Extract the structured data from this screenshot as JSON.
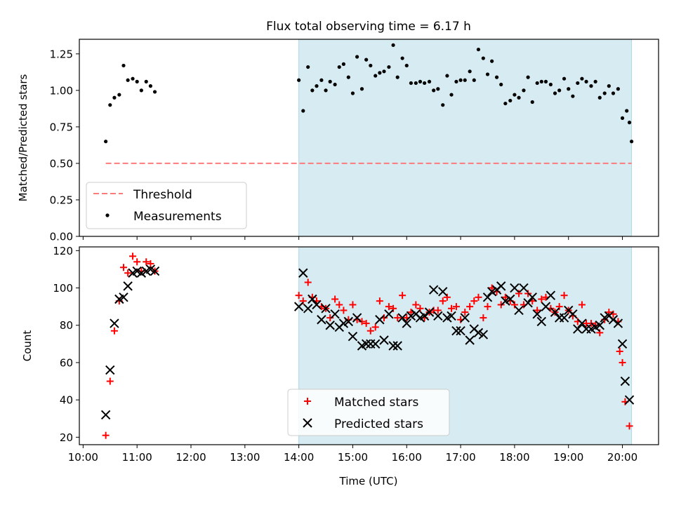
{
  "chart_data": [
    {
      "type": "scatter",
      "title": "Flux total observing time = 6.17 h",
      "xlabel": "",
      "ylabel": "Matched/Predicted stars",
      "xlim": [
        9.93,
        20.67
      ],
      "ylim": [
        0,
        1.35
      ],
      "yticks": [
        0,
        0.25,
        0.5,
        0.75,
        1.0,
        1.25
      ],
      "ytick_labels": [
        "0.00",
        "0.25",
        "0.50",
        "0.75",
        "1.00",
        "1.25"
      ],
      "shaded_interval": [
        14.0,
        20.17
      ],
      "legend_position": "lower-left",
      "threshold": {
        "name": "Threshold",
        "value": 0.5,
        "x_range": [
          10.42,
          20.17
        ],
        "color": "#ff7b7b"
      },
      "series": [
        {
          "name": "Measurements",
          "color": "#000000",
          "points": [
            [
              10.42,
              0.65
            ],
            [
              10.5,
              0.9
            ],
            [
              10.58,
              0.95
            ],
            [
              10.67,
              0.97
            ],
            [
              10.75,
              1.17
            ],
            [
              10.83,
              1.07
            ],
            [
              10.92,
              1.08
            ],
            [
              11.0,
              1.06
            ],
            [
              11.08,
              1.0
            ],
            [
              11.17,
              1.06
            ],
            [
              11.25,
              1.03
            ],
            [
              11.33,
              0.99
            ],
            [
              14.0,
              1.07
            ],
            [
              14.08,
              0.86
            ],
            [
              14.17,
              1.16
            ],
            [
              14.25,
              1.0
            ],
            [
              14.33,
              1.03
            ],
            [
              14.42,
              1.07
            ],
            [
              14.5,
              1.0
            ],
            [
              14.58,
              1.06
            ],
            [
              14.67,
              1.04
            ],
            [
              14.75,
              1.16
            ],
            [
              14.83,
              1.18
            ],
            [
              14.92,
              1.09
            ],
            [
              15.0,
              0.98
            ],
            [
              15.08,
              1.23
            ],
            [
              15.17,
              1.01
            ],
            [
              15.25,
              1.21
            ],
            [
              15.33,
              1.17
            ],
            [
              15.42,
              1.1
            ],
            [
              15.5,
              1.12
            ],
            [
              15.58,
              1.13
            ],
            [
              15.67,
              1.16
            ],
            [
              15.75,
              1.31
            ],
            [
              15.83,
              1.09
            ],
            [
              15.92,
              1.22
            ],
            [
              16.0,
              1.17
            ],
            [
              16.08,
              1.05
            ],
            [
              16.17,
              1.05
            ],
            [
              16.25,
              1.06
            ],
            [
              16.33,
              1.05
            ],
            [
              16.42,
              1.06
            ],
            [
              16.5,
              1.0
            ],
            [
              16.58,
              1.01
            ],
            [
              16.67,
              0.9
            ],
            [
              16.75,
              1.1
            ],
            [
              16.83,
              0.97
            ],
            [
              16.92,
              1.06
            ],
            [
              17.0,
              1.07
            ],
            [
              17.08,
              1.07
            ],
            [
              17.17,
              1.13
            ],
            [
              17.25,
              1.07
            ],
            [
              17.33,
              1.28
            ],
            [
              17.42,
              1.22
            ],
            [
              17.5,
              1.11
            ],
            [
              17.58,
              1.2
            ],
            [
              17.67,
              1.09
            ],
            [
              17.75,
              1.04
            ],
            [
              17.83,
              0.91
            ],
            [
              17.92,
              0.93
            ],
            [
              18.0,
              0.97
            ],
            [
              18.08,
              0.95
            ],
            [
              18.17,
              1.0
            ],
            [
              18.25,
              1.09
            ],
            [
              18.33,
              0.92
            ],
            [
              18.42,
              1.05
            ],
            [
              18.5,
              1.06
            ],
            [
              18.58,
              1.06
            ],
            [
              18.67,
              1.04
            ],
            [
              18.75,
              0.98
            ],
            [
              18.83,
              1.0
            ],
            [
              18.92,
              1.08
            ],
            [
              19.0,
              1.01
            ],
            [
              19.08,
              0.96
            ],
            [
              19.17,
              1.05
            ],
            [
              19.25,
              1.08
            ],
            [
              19.33,
              1.06
            ],
            [
              19.42,
              1.03
            ],
            [
              19.5,
              1.06
            ],
            [
              19.58,
              0.95
            ],
            [
              19.67,
              0.98
            ],
            [
              19.75,
              1.03
            ],
            [
              19.83,
              0.98
            ],
            [
              19.92,
              1.01
            ],
            [
              20.0,
              0.81
            ],
            [
              20.08,
              0.86
            ],
            [
              20.13,
              0.78
            ],
            [
              20.17,
              0.65
            ]
          ]
        }
      ]
    },
    {
      "type": "scatter",
      "title": "",
      "xlabel": "Time (UTC)",
      "ylabel": "Count",
      "xlim": [
        9.93,
        20.67
      ],
      "ylim": [
        16,
        122
      ],
      "yticks": [
        20,
        40,
        60,
        80,
        100,
        120
      ],
      "ytick_labels": [
        "20",
        "40",
        "60",
        "80",
        "100",
        "120"
      ],
      "xticks": [
        10,
        11,
        12,
        13,
        14,
        15,
        16,
        17,
        18,
        19,
        20
      ],
      "xtick_labels": [
        "10:00",
        "11:00",
        "12:00",
        "13:00",
        "14:00",
        "15:00",
        "16:00",
        "17:00",
        "18:00",
        "19:00",
        "20:00"
      ],
      "shaded_interval": [
        14.0,
        20.17
      ],
      "legend_position": "lower-center",
      "series": [
        {
          "name": "Matched stars",
          "color": "#ff0000",
          "marker": "plus",
          "points": [
            [
              10.42,
              21
            ],
            [
              10.5,
              50
            ],
            [
              10.58,
              77
            ],
            [
              10.67,
              93
            ],
            [
              10.75,
              111
            ],
            [
              10.83,
              108
            ],
            [
              10.92,
              117
            ],
            [
              11.0,
              114
            ],
            [
              11.08,
              109
            ],
            [
              11.17,
              114
            ],
            [
              11.25,
              113
            ],
            [
              11.33,
              109
            ],
            [
              14.0,
              96
            ],
            [
              14.08,
              93
            ],
            [
              14.17,
              103
            ],
            [
              14.25,
              95
            ],
            [
              14.33,
              93
            ],
            [
              14.42,
              90
            ],
            [
              14.5,
              89
            ],
            [
              14.58,
              84
            ],
            [
              14.67,
              94
            ],
            [
              14.75,
              91
            ],
            [
              14.83,
              88
            ],
            [
              14.92,
              83
            ],
            [
              15.0,
              91
            ],
            [
              15.08,
              83
            ],
            [
              15.17,
              82
            ],
            [
              15.25,
              81
            ],
            [
              15.33,
              77
            ],
            [
              15.42,
              79
            ],
            [
              15.5,
              93
            ],
            [
              15.58,
              84
            ],
            [
              15.67,
              90
            ],
            [
              15.75,
              89
            ],
            [
              15.83,
              84
            ],
            [
              15.92,
              96
            ],
            [
              16.0,
              84
            ],
            [
              16.08,
              87
            ],
            [
              16.17,
              91
            ],
            [
              16.25,
              89
            ],
            [
              16.33,
              84
            ],
            [
              16.42,
              87
            ],
            [
              16.5,
              88
            ],
            [
              16.58,
              88
            ],
            [
              16.67,
              93
            ],
            [
              16.75,
              95
            ],
            [
              16.83,
              89
            ],
            [
              16.92,
              90
            ],
            [
              17.0,
              83
            ],
            [
              17.08,
              87
            ],
            [
              17.17,
              90
            ],
            [
              17.25,
              93
            ],
            [
              17.33,
              95
            ],
            [
              17.42,
              84
            ],
            [
              17.5,
              90
            ],
            [
              17.58,
              100
            ],
            [
              17.67,
              98
            ],
            [
              17.75,
              91
            ],
            [
              17.83,
              95
            ],
            [
              17.92,
              93
            ],
            [
              18.0,
              91
            ],
            [
              18.08,
              97
            ],
            [
              18.17,
              91
            ],
            [
              18.25,
              97
            ],
            [
              18.33,
              93
            ],
            [
              18.42,
              88
            ],
            [
              18.5,
              94
            ],
            [
              18.58,
              95
            ],
            [
              18.67,
              89
            ],
            [
              18.75,
              87
            ],
            [
              18.83,
              90
            ],
            [
              18.92,
              96
            ],
            [
              19.0,
              88
            ],
            [
              19.08,
              85
            ],
            [
              19.17,
              82
            ],
            [
              19.25,
              91
            ],
            [
              19.33,
              81
            ],
            [
              19.42,
              81
            ],
            [
              19.5,
              80
            ],
            [
              19.58,
              76
            ],
            [
              19.67,
              83
            ],
            [
              19.75,
              87
            ],
            [
              19.83,
              86
            ],
            [
              19.92,
              82
            ],
            [
              19.95,
              66
            ],
            [
              20.0,
              60
            ],
            [
              20.05,
              39
            ],
            [
              20.13,
              26
            ]
          ]
        },
        {
          "name": "Predicted stars",
          "color": "#000000",
          "marker": "x",
          "points": [
            [
              10.42,
              32
            ],
            [
              10.5,
              56
            ],
            [
              10.58,
              81
            ],
            [
              10.67,
              94
            ],
            [
              10.75,
              95
            ],
            [
              10.83,
              101
            ],
            [
              10.92,
              108
            ],
            [
              11.0,
              109
            ],
            [
              11.08,
              108
            ],
            [
              11.17,
              109
            ],
            [
              11.25,
              110
            ],
            [
              11.33,
              109
            ],
            [
              14.0,
              90
            ],
            [
              14.08,
              108
            ],
            [
              14.17,
              89
            ],
            [
              14.25,
              94
            ],
            [
              14.33,
              91
            ],
            [
              14.42,
              83
            ],
            [
              14.5,
              89
            ],
            [
              14.58,
              80
            ],
            [
              14.67,
              86
            ],
            [
              14.75,
              79
            ],
            [
              14.83,
              81
            ],
            [
              14.92,
              82
            ],
            [
              15.0,
              74
            ],
            [
              15.08,
              84
            ],
            [
              15.17,
              69
            ],
            [
              15.25,
              70
            ],
            [
              15.33,
              70
            ],
            [
              15.42,
              70
            ],
            [
              15.5,
              83
            ],
            [
              15.58,
              72
            ],
            [
              15.67,
              86
            ],
            [
              15.75,
              69
            ],
            [
              15.83,
              69
            ],
            [
              15.92,
              84
            ],
            [
              16.0,
              81
            ],
            [
              16.08,
              85
            ],
            [
              16.17,
              86
            ],
            [
              16.25,
              84
            ],
            [
              16.33,
              85
            ],
            [
              16.42,
              87
            ],
            [
              16.5,
              99
            ],
            [
              16.58,
              85
            ],
            [
              16.67,
              98
            ],
            [
              16.75,
              84
            ],
            [
              16.83,
              85
            ],
            [
              16.92,
              77
            ],
            [
              17.0,
              77
            ],
            [
              17.08,
              84
            ],
            [
              17.17,
              72
            ],
            [
              17.25,
              78
            ],
            [
              17.33,
              76
            ],
            [
              17.42,
              75
            ],
            [
              17.5,
              95
            ],
            [
              17.58,
              98
            ],
            [
              17.67,
              99
            ],
            [
              17.75,
              101
            ],
            [
              17.83,
              93
            ],
            [
              17.92,
              94
            ],
            [
              18.0,
              100
            ],
            [
              18.08,
              88
            ],
            [
              18.17,
              100
            ],
            [
              18.25,
              92
            ],
            [
              18.33,
              95
            ],
            [
              18.42,
              86
            ],
            [
              18.5,
              82
            ],
            [
              18.58,
              90
            ],
            [
              18.67,
              96
            ],
            [
              18.75,
              87
            ],
            [
              18.83,
              84
            ],
            [
              18.92,
              84
            ],
            [
              19.0,
              88
            ],
            [
              19.08,
              86
            ],
            [
              19.17,
              78
            ],
            [
              19.25,
              81
            ],
            [
              19.33,
              78
            ],
            [
              19.42,
              78
            ],
            [
              19.5,
              79
            ],
            [
              19.58,
              80
            ],
            [
              19.67,
              84
            ],
            [
              19.75,
              85
            ],
            [
              19.83,
              83
            ],
            [
              19.92,
              81
            ],
            [
              20.0,
              70
            ],
            [
              20.05,
              50
            ],
            [
              20.13,
              40
            ]
          ]
        }
      ]
    }
  ]
}
